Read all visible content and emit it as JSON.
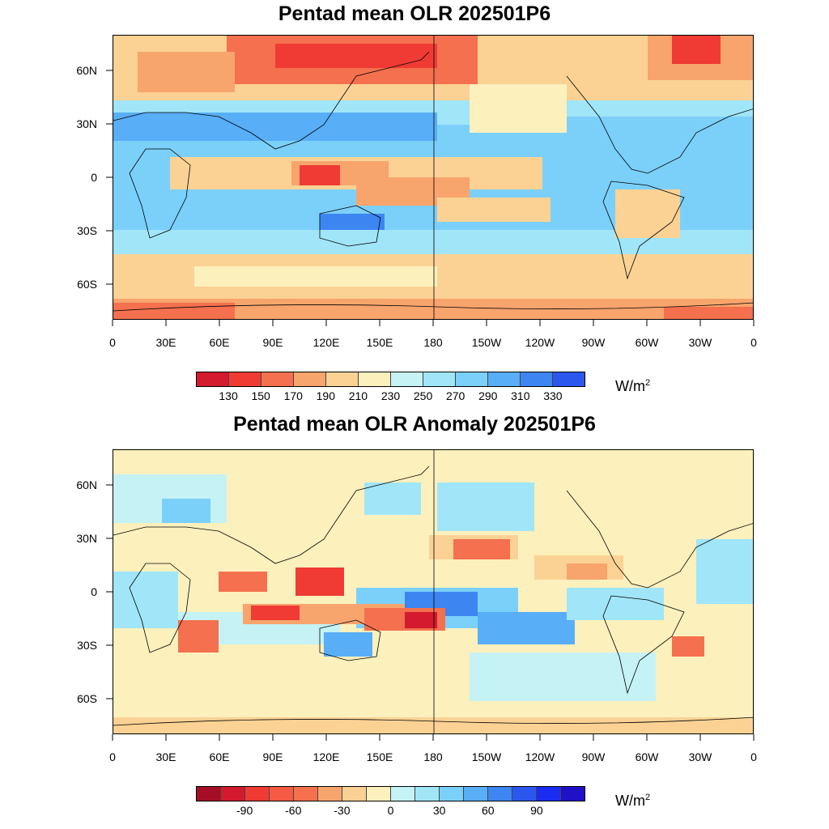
{
  "panels": [
    {
      "title": "Pentad mean OLR 202501P6",
      "lat_labels": [
        "60N",
        "30N",
        "0",
        "30S",
        "60S"
      ],
      "lon_labels": [
        "0",
        "30E",
        "60E",
        "90E",
        "120E",
        "150E",
        "180",
        "150W",
        "120W",
        "90W",
        "60W",
        "30W",
        "0"
      ],
      "colorbar": {
        "colors": [
          "#d41a2e",
          "#ef3b34",
          "#f4704f",
          "#f8a46d",
          "#fbd294",
          "#fcf0bd",
          "#c5f2f5",
          "#a0e6f8",
          "#7bd0fa",
          "#58aef7",
          "#3d86f2",
          "#2c57ef"
        ],
        "labels": [
          "130",
          "150",
          "170",
          "190",
          "210",
          "230",
          "250",
          "270",
          "290",
          "310",
          "330"
        ]
      },
      "units_base": "W/m",
      "units_exp": "2"
    },
    {
      "title": "Pentad mean OLR Anomaly 202501P6",
      "lat_labels": [
        "60N",
        "30N",
        "0",
        "30S",
        "60S"
      ],
      "lon_labels": [
        "0",
        "30E",
        "60E",
        "90E",
        "120E",
        "150E",
        "180",
        "150W",
        "120W",
        "90W",
        "60W",
        "30W",
        "0"
      ],
      "colorbar": {
        "colors": [
          "#a50f25",
          "#d41a2e",
          "#ef3b34",
          "#f45a44",
          "#f4704f",
          "#f8a46d",
          "#fbd294",
          "#fcf0bd",
          "#c5f2f5",
          "#a0e6f8",
          "#7bd0fa",
          "#58aef7",
          "#3d86f2",
          "#2c57ef",
          "#1a2cf0",
          "#2010c8"
        ],
        "labels": [
          "-90",
          "-60",
          "-30",
          "0",
          "30",
          "60",
          "90"
        ],
        "label_slots": [
          2,
          4,
          6,
          8,
          10,
          12,
          14
        ]
      },
      "units_base": "W/m",
      "units_exp": "2"
    }
  ]
}
